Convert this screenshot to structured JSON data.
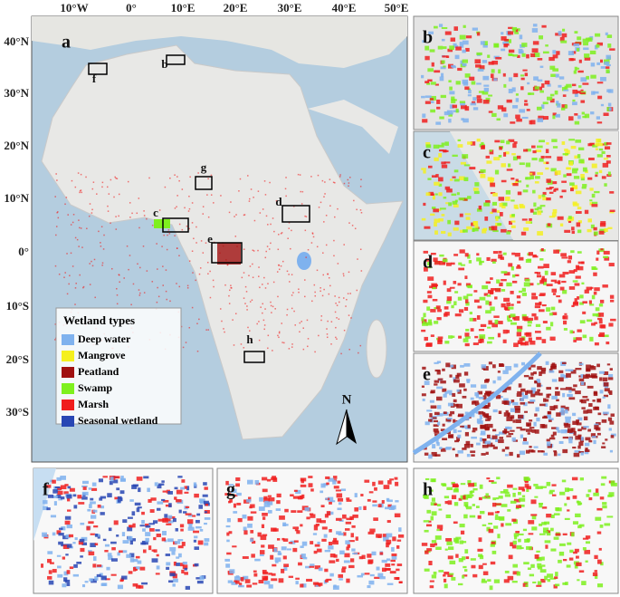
{
  "map": {
    "panel_label": "a",
    "lon_labels": [
      "10°W",
      "0°",
      "10°E",
      "20°E",
      "30°E",
      "40°E",
      "50°E"
    ],
    "lat_labels": [
      "40°N",
      "30°N",
      "20°N",
      "10°N",
      "0°",
      "10°S",
      "20°S",
      "30°S"
    ],
    "region_labels": [
      "b",
      "c",
      "d",
      "e",
      "f",
      "g",
      "h"
    ],
    "north": "N"
  },
  "legend": {
    "title": "Wetland types",
    "items": [
      {
        "name": "Deep water",
        "color": "#7fb2ee"
      },
      {
        "name": "Mangrove",
        "color": "#f5f01e"
      },
      {
        "name": "Peatland",
        "color": "#a01010"
      },
      {
        "name": "Swamp",
        "color": "#7ef01e"
      },
      {
        "name": "Marsh",
        "color": "#f01e1e"
      },
      {
        "name": "Seasonal wetland",
        "color": "#2846b4"
      }
    ]
  },
  "insets": [
    {
      "label": "b"
    },
    {
      "label": "c"
    },
    {
      "label": "d"
    },
    {
      "label": "e"
    },
    {
      "label": "f"
    },
    {
      "label": "g"
    },
    {
      "label": "h"
    }
  ]
}
